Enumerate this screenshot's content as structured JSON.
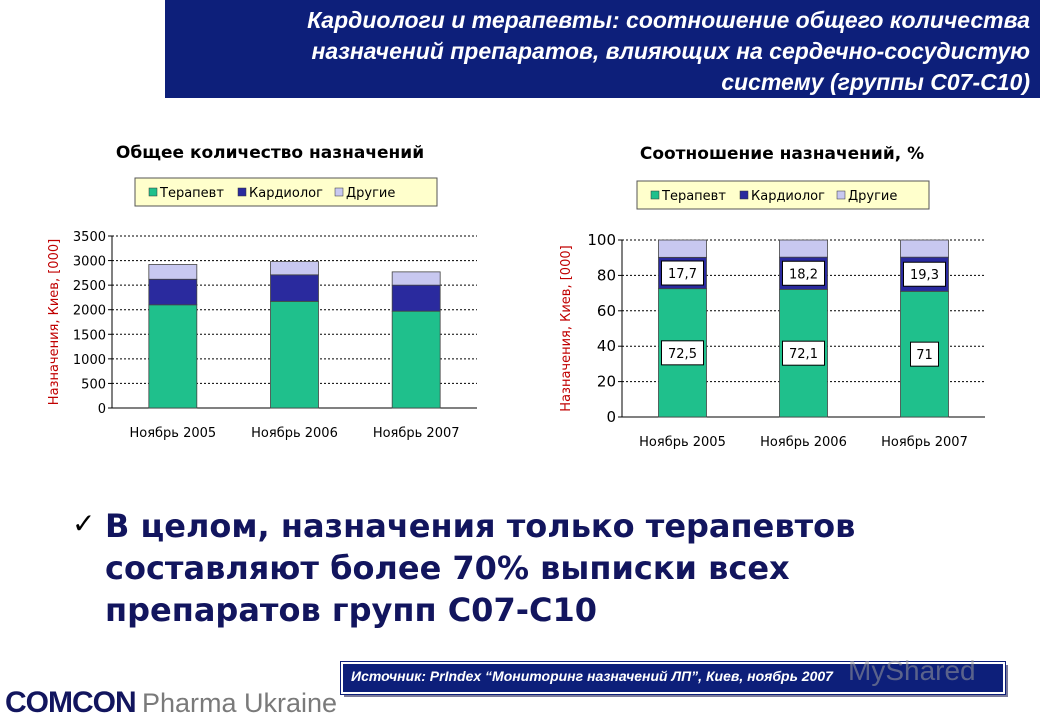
{
  "header": {
    "title_line1": "Кардиологи и терапевты: соотношение общего количества",
    "title_line2": "назначений препаратов, влияющих на сердечно-сосудистую",
    "title_line3": "систему (группы С07-С10)"
  },
  "colors": {
    "therapist": "#1fc08c",
    "cardiologist": "#2a2a9e",
    "other": "#c8c8f0",
    "header_bg": "#0d1f7a",
    "ylabel": "#c00000"
  },
  "chart_data": [
    {
      "type": "bar",
      "stacked": true,
      "title": "Общее количество назначений",
      "ylabel": "Назначения, Киев, [000]",
      "xlabel": "",
      "categories": [
        "Ноябрь 2005",
        "Ноябрь 2006",
        "Ноябрь 2007"
      ],
      "series": [
        {
          "name": "Терапевт",
          "values": [
            2100,
            2170,
            1970
          ]
        },
        {
          "name": "Кардиолог",
          "values": [
            520,
            540,
            530
          ]
        },
        {
          "name": "Другие",
          "values": [
            300,
            270,
            270
          ]
        }
      ],
      "ylim": [
        0,
        3500
      ],
      "yticks": [
        0,
        500,
        1000,
        1500,
        2000,
        2500,
        3000,
        3500
      ],
      "legend": "top",
      "grid": true
    },
    {
      "type": "bar",
      "stacked": true,
      "title": "Соотношение назначений, %",
      "ylabel": "Назначения, Киев, [000]",
      "xlabel": "",
      "categories": [
        "Ноябрь 2005",
        "Ноябрь 2006",
        "Ноябрь 2007"
      ],
      "series": [
        {
          "name": "Терапевт",
          "values": [
            72.5,
            72.1,
            71
          ],
          "labels": [
            "72,5",
            "72,1",
            "71"
          ]
        },
        {
          "name": "Кардиолог",
          "values": [
            17.7,
            18.2,
            19.3
          ],
          "labels": [
            "17,7",
            "18,2",
            "19,3"
          ]
        },
        {
          "name": "Другие",
          "values": [
            9.8,
            9.7,
            9.7
          ]
        }
      ],
      "ylim": [
        0,
        100
      ],
      "yticks": [
        0,
        20,
        40,
        60,
        80,
        100
      ],
      "legend": "top",
      "grid": true
    }
  ],
  "bullet": {
    "check": "✓",
    "text": "В целом, назначения только терапевтов составляют более 70% выписки всех препаратов групп С07-С10"
  },
  "source": {
    "text": "Источник:  PrIndex “Мониторинг назначений ЛП”, Киев, ноябрь 2007"
  },
  "logo": {
    "brand": "COMCON",
    "sub": "Pharma Ukraine"
  },
  "watermark": "MyShared"
}
